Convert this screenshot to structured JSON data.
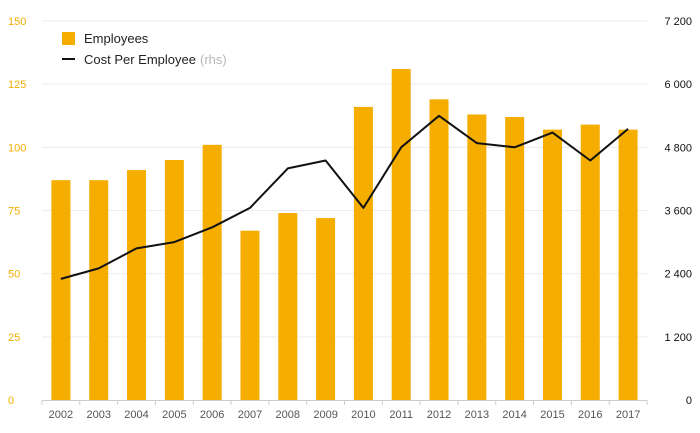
{
  "colors": {
    "bar": "#f5ad00",
    "line": "#111111",
    "left_axis_text": "#f5ad00",
    "right_axis_text": "#111111",
    "grid": "#ececec"
  },
  "legend": {
    "position": "top-left",
    "items": [
      {
        "label": "Employees",
        "marker": "bar",
        "note": ""
      },
      {
        "label": "Cost Per Employee",
        "marker": "line",
        "note": "(rhs)"
      }
    ]
  },
  "chart_data": {
    "type": "bar",
    "categories": [
      "2002",
      "2003",
      "2004",
      "2005",
      "2006",
      "2007",
      "2008",
      "2009",
      "2010",
      "2011",
      "2012",
      "2013",
      "2014",
      "2015",
      "2016",
      "2017"
    ],
    "series": [
      {
        "name": "Employees",
        "type": "bar",
        "axis": "left",
        "values": [
          87,
          87,
          91,
          95,
          101,
          67,
          74,
          72,
          116,
          131,
          119,
          113,
          112,
          107,
          109,
          107
        ]
      },
      {
        "name": "Cost Per Employee",
        "type": "line",
        "axis": "right",
        "values": [
          2300,
          2500,
          2880,
          3000,
          3280,
          3650,
          4400,
          4550,
          3650,
          4800,
          5400,
          4880,
          4800,
          5080,
          4550,
          5150
        ]
      }
    ],
    "y_left": {
      "min": 0,
      "max": 150,
      "ticks": [
        "0",
        "25",
        "50",
        "75",
        "100",
        "125",
        "150"
      ],
      "tick_values": [
        0,
        25,
        50,
        75,
        100,
        125,
        150
      ]
    },
    "y_right": {
      "min": 0,
      "max": 7200,
      "ticks": [
        "0",
        "1 200",
        "2 400",
        "3 600",
        "4 800",
        "6 000",
        "7 200"
      ],
      "tick_values": [
        0,
        1200,
        2400,
        3600,
        4800,
        6000,
        7200
      ]
    },
    "grid": true,
    "title": "",
    "xlabel": "",
    "ylabel": ""
  }
}
